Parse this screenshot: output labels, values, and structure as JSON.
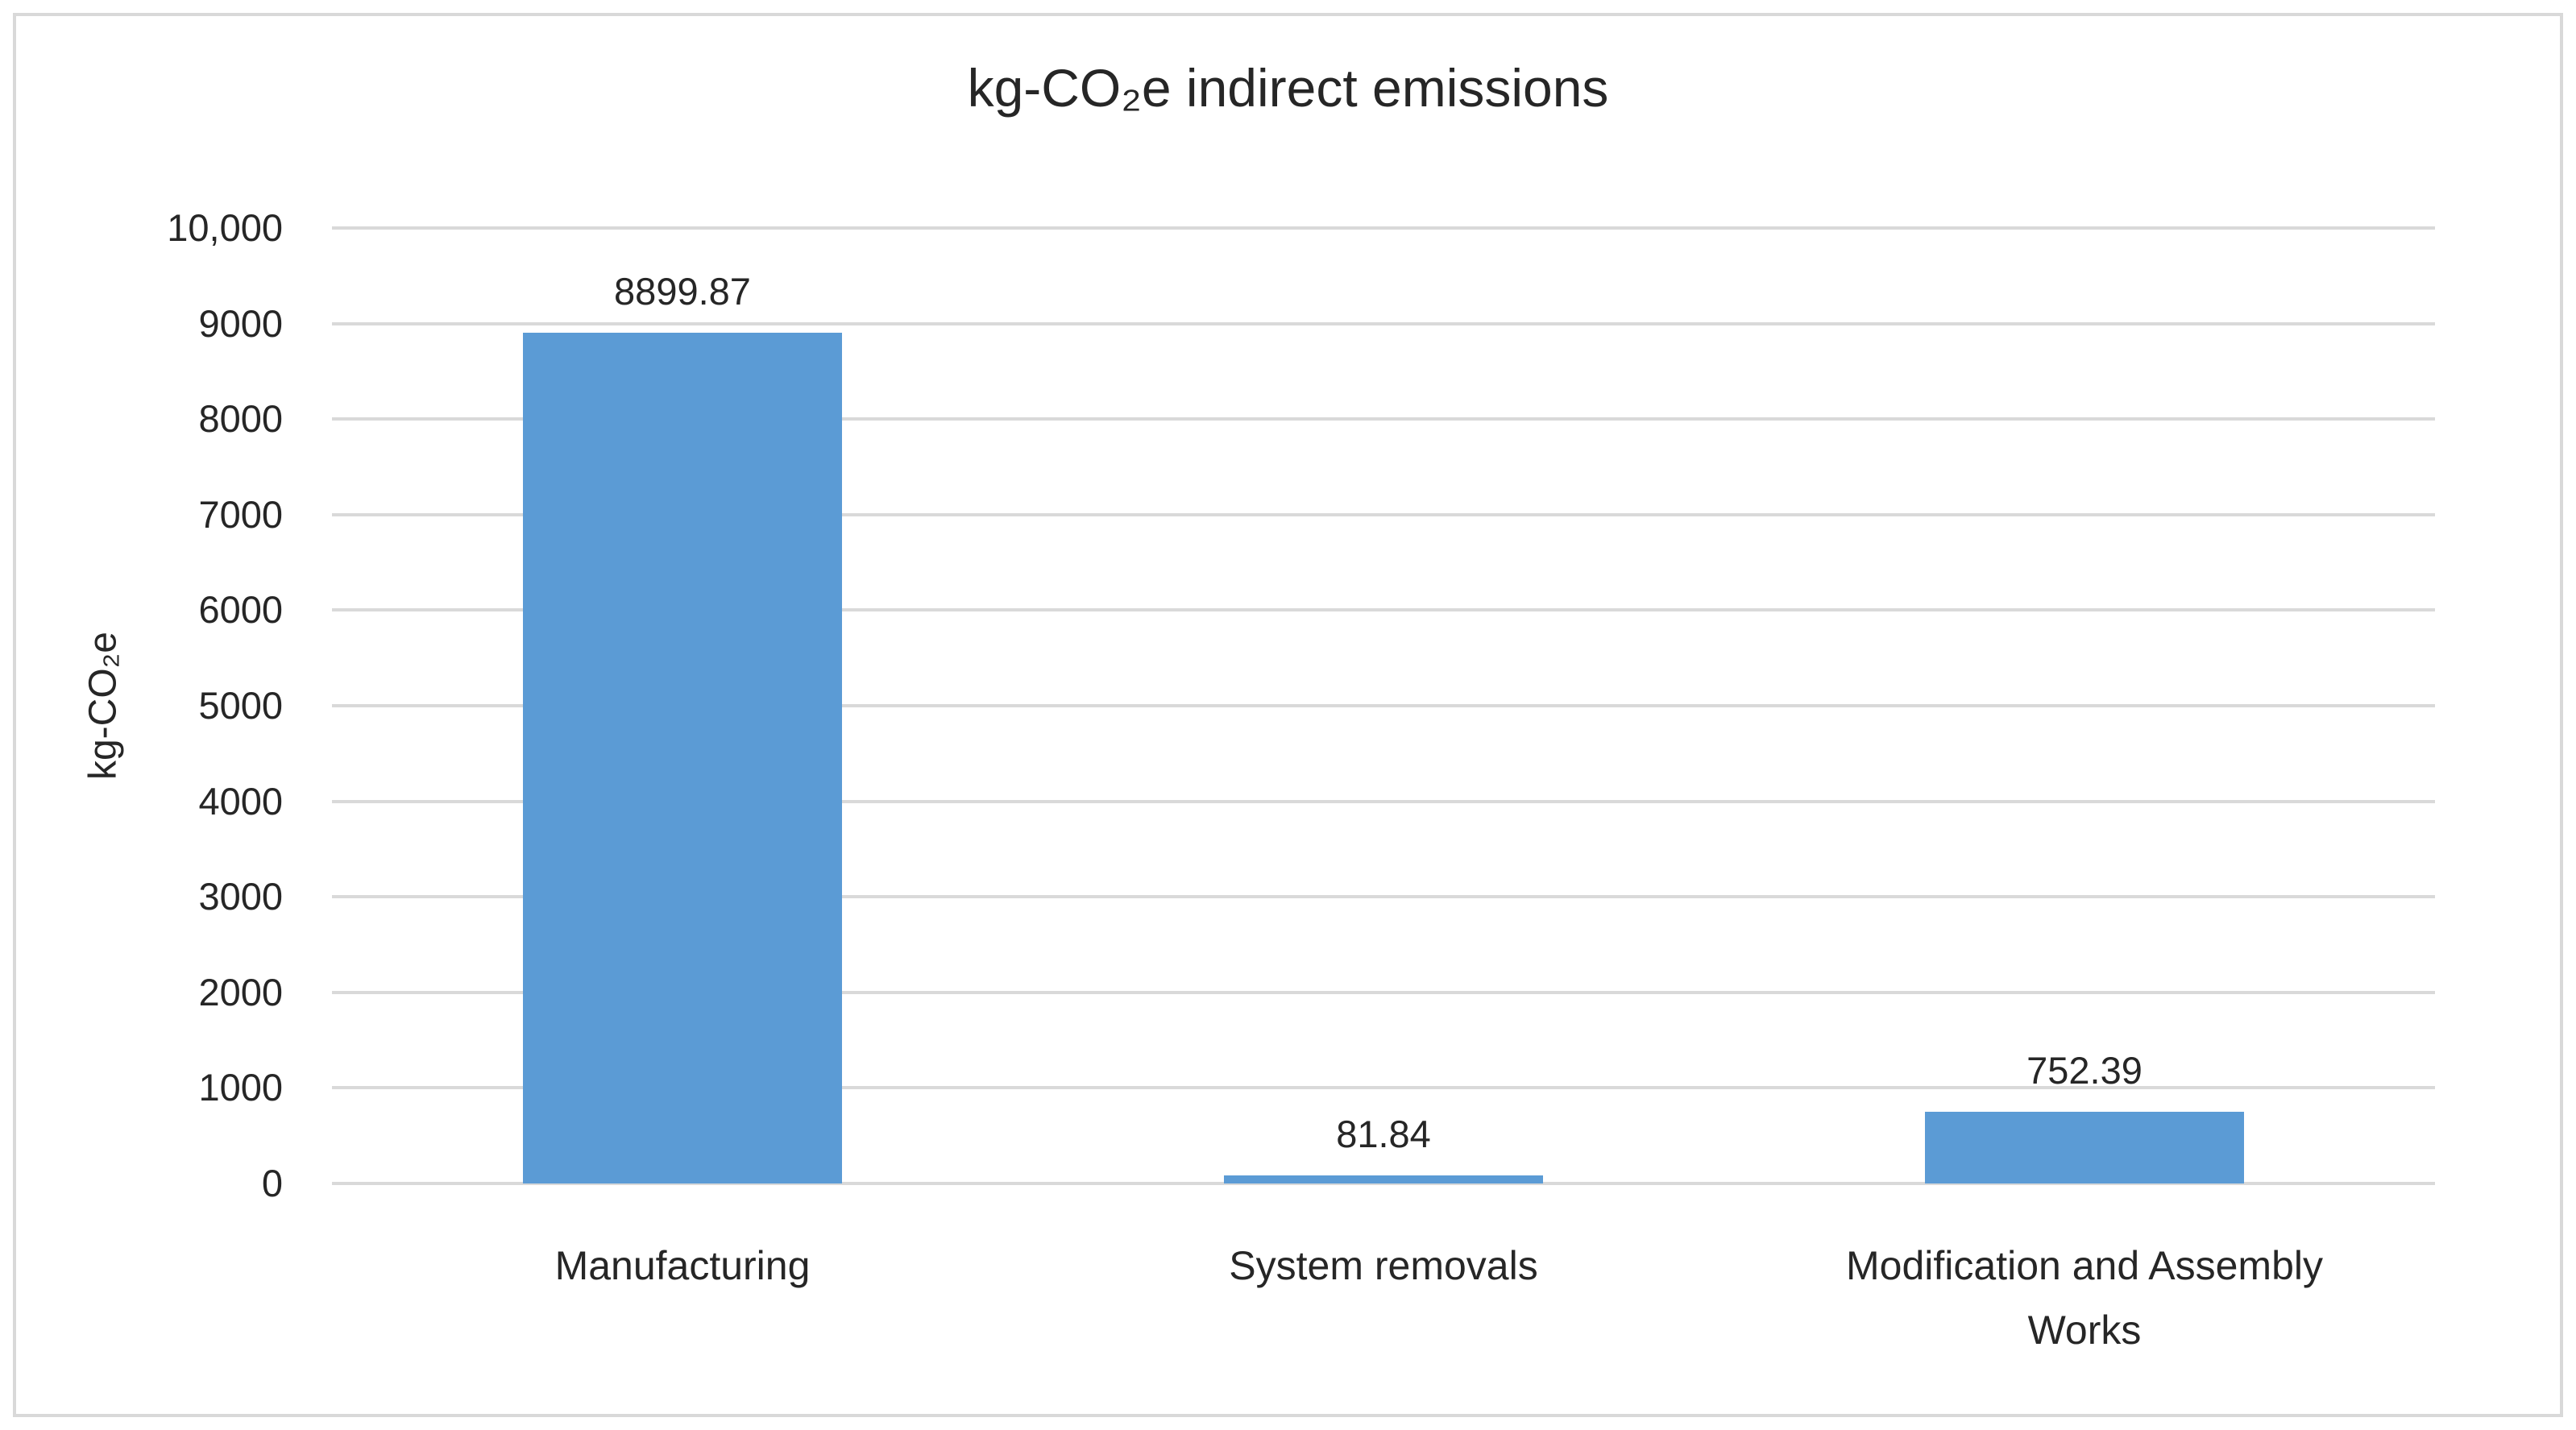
{
  "chart_data": {
    "type": "bar",
    "title": "kg-CO₂e indirect emissions",
    "ylabel": "kg-CO₂e",
    "xlabel": "",
    "categories": [
      "Manufacturing",
      "System removals",
      "Modification and Assembly\nWorks"
    ],
    "values": [
      8899.87,
      81.84,
      752.39
    ],
    "data_labels": [
      "8899.87",
      "81.84",
      "752.39"
    ],
    "ylim": [
      0,
      10000
    ],
    "ytick_step": 1000,
    "ytick_labels_top_to_bottom": [
      "10,000",
      "9000",
      "8000",
      "7000",
      "6000",
      "5000",
      "4000",
      "3000",
      "2000",
      "1000",
      "0"
    ],
    "grid": "horizontal",
    "legend": "none",
    "colors": {
      "bar": "#5B9BD5",
      "gridline": "#D9D9D9",
      "frame_border": "#D9D9D9",
      "text": "#262626",
      "background": "#FFFFFF"
    }
  }
}
